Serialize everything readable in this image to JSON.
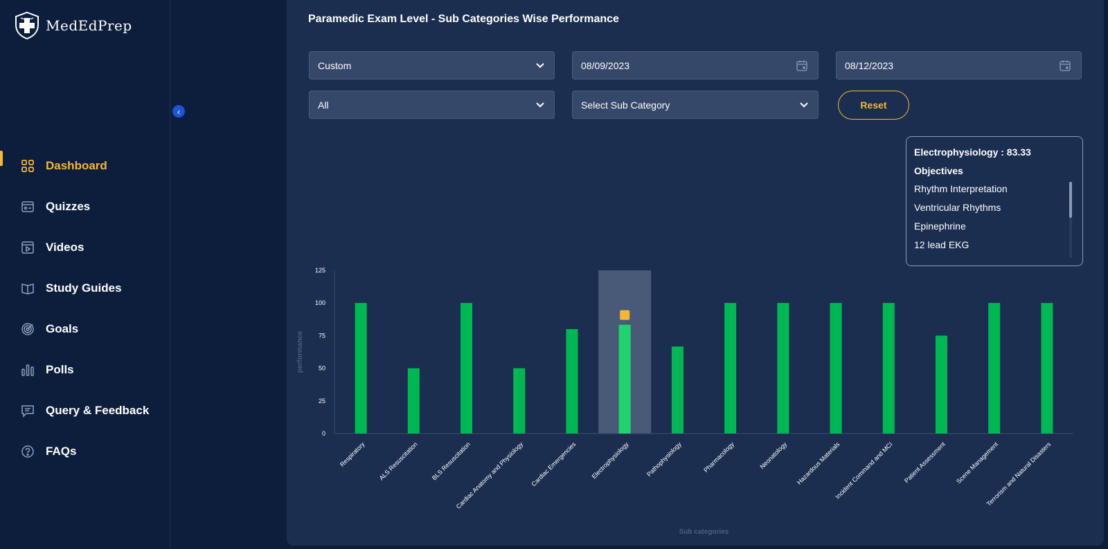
{
  "brand": {
    "name": "MedEdPrep"
  },
  "nav": {
    "items": [
      {
        "label": "Dashboard",
        "icon": "dashboard-icon",
        "active": true
      },
      {
        "label": "Quizzes",
        "icon": "quiz-icon"
      },
      {
        "label": "Videos",
        "icon": "video-icon"
      },
      {
        "label": "Study Guides",
        "icon": "book-icon"
      },
      {
        "label": "Goals",
        "icon": "target-icon"
      },
      {
        "label": "Polls",
        "icon": "poll-icon"
      },
      {
        "label": "Query & Feedback",
        "icon": "feedback-icon"
      },
      {
        "label": "FAQs",
        "icon": "help-icon"
      }
    ]
  },
  "page": {
    "title": "Paramedic Exam Level - Sub Categories Wise Performance"
  },
  "filters": {
    "range": "Custom",
    "start_date": "08/09/2023",
    "end_date": "08/12/2023",
    "category": "All",
    "subcategory": "Select Sub Category",
    "reset_label": "Reset"
  },
  "tooltip": {
    "header": "Electrophysiology : 83.33",
    "objectives_label": "Objectives",
    "objectives": [
      "Rhythm Interpretation",
      "Ventricular Rhythms",
      "Epinephrine",
      "12 lead EKG"
    ]
  },
  "colors": {
    "accent": "#f6b832",
    "bar": "#00b853",
    "bar_highlight": "#1fd36f",
    "highlight_band": "#485a78"
  },
  "chart_data": {
    "type": "bar",
    "title": "",
    "xlabel": "Sub categories",
    "ylabel": "performance",
    "ylim": [
      0,
      125
    ],
    "yticks": [
      0,
      25,
      50,
      75,
      100,
      125
    ],
    "categories": [
      "Respiratory",
      "ALS Resuscitation",
      "BLS Resuscitation",
      "Cardiac Anatomy and Physiology",
      "Cardiac Emergencies",
      "Electrophysiology",
      "Pathophysiology",
      "Pharmacology",
      "Neonatology",
      "Hazardous Materials",
      "Incident Command and MCI",
      "Patient Assessment",
      "Scene Management",
      "Terrorism and Natural Disasters"
    ],
    "values": [
      100,
      50,
      100,
      50,
      80,
      83.33,
      66.67,
      100,
      100,
      100,
      100,
      75,
      100,
      100
    ],
    "highlighted": "Electrophysiology"
  }
}
